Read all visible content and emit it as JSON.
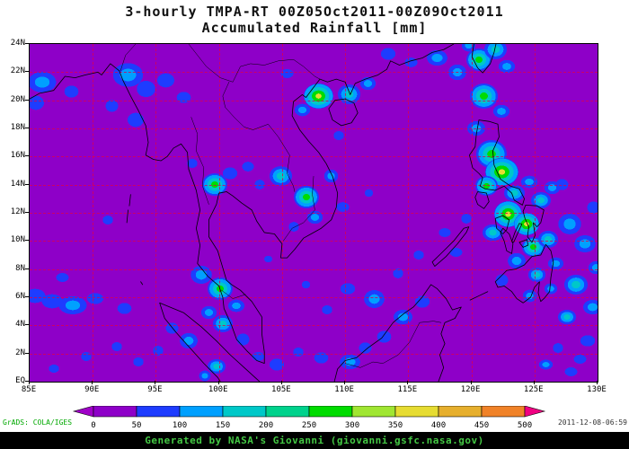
{
  "header": {
    "title_line1": "3-hourly TMPA-RT 00Z05Oct2011-00Z09Oct2011",
    "title_line2": "Accumulated Rainfall [mm]"
  },
  "footer": {
    "generated_by": "Generated by NASA's Giovanni (giovanni.gsfc.nasa.gov)",
    "grads_credit": "GrADS: COLA/IGES",
    "timestamp": "2011-12-08-06:59"
  },
  "colors": {
    "page_background": "#FFFFFF",
    "footer_bar": "#000000",
    "footer_text": "#44C844",
    "credit_text": "#00A800",
    "grid_line": "#DC0050",
    "coastline": "#000000"
  },
  "chart_data": {
    "type": "heatmap",
    "title": "3-hourly TMPA-RT 00Z05Oct2011-00Z09Oct2011 Accumulated Rainfall [mm]",
    "units": "mm",
    "region": {
      "lon_min_deg_e": 85,
      "lon_max_deg_e": 130,
      "lat_min": "EQ (0N)",
      "lat_max": "24N"
    },
    "x_ticks": [
      "85E",
      "90E",
      "95E",
      "100E",
      "105E",
      "110E",
      "115E",
      "120E",
      "125E",
      "130E"
    ],
    "y_ticks": [
      "EQ",
      "2N",
      "4N",
      "6N",
      "8N",
      "10N",
      "12N",
      "14N",
      "16N",
      "18N",
      "20N",
      "22N",
      "24N"
    ],
    "grid": {
      "on": true,
      "style": "dashed",
      "lat_step_deg": 2,
      "lon_step_deg": 5
    },
    "colorbar": {
      "labels": [
        "0",
        "50",
        "100",
        "150",
        "200",
        "250",
        "300",
        "350",
        "400",
        "450",
        "500"
      ],
      "colors": [
        "#A000C8",
        "#8E00C8",
        "#1E3CFF",
        "#00A0FF",
        "#00C8C8",
        "#00D28C",
        "#00DC00",
        "#A0E632",
        "#E6DC32",
        "#E6AF2D",
        "#F08228",
        "#F00082"
      ],
      "note": "first color = below-min arrow, last color = above-max arrow, 10 bands between labels"
    },
    "rain_cells": {
      "format": [
        "lon_deg_e",
        "lat_deg_n",
        "rx_deg",
        "ry_deg",
        "intensity_level"
      ],
      "levels_mm": {
        "1": "50-100",
        "2": "100-150",
        "3": "150-250",
        "4": "250-350",
        "5": "350-500"
      },
      "cells": [
        [
          86.0,
          21.3,
          1.2,
          0.8,
          2
        ],
        [
          85.5,
          19.8,
          0.8,
          0.6,
          1
        ],
        [
          88.3,
          20.6,
          0.7,
          0.5,
          1
        ],
        [
          91.5,
          19.6,
          0.6,
          0.5,
          1
        ],
        [
          92.8,
          21.8,
          1.3,
          0.9,
          2
        ],
        [
          94.2,
          20.8,
          0.9,
          0.7,
          1
        ],
        [
          95.8,
          21.4,
          0.8,
          0.6,
          1
        ],
        [
          97.2,
          20.2,
          0.7,
          0.5,
          1
        ],
        [
          93.4,
          18.6,
          0.8,
          0.6,
          1
        ],
        [
          85.4,
          6.1,
          1.0,
          0.6,
          1
        ],
        [
          86.8,
          5.7,
          1.0,
          0.6,
          1
        ],
        [
          88.4,
          5.4,
          1.2,
          0.7,
          2
        ],
        [
          90.2,
          5.9,
          0.8,
          0.5,
          1
        ],
        [
          92.5,
          5.2,
          0.7,
          0.5,
          1
        ],
        [
          87.6,
          7.4,
          0.6,
          0.4,
          1
        ],
        [
          91.2,
          11.5,
          0.5,
          0.4,
          1
        ],
        [
          99.7,
          14.0,
          1.0,
          0.8,
          4
        ],
        [
          100.9,
          14.8,
          0.7,
          0.5,
          1
        ],
        [
          102.3,
          15.3,
          0.6,
          0.4,
          1
        ],
        [
          103.2,
          14.0,
          0.5,
          0.4,
          1
        ],
        [
          104.9,
          14.6,
          0.9,
          0.7,
          3
        ],
        [
          106.9,
          13.1,
          1.0,
          0.8,
          4
        ],
        [
          107.6,
          11.7,
          0.7,
          0.5,
          2
        ],
        [
          105.9,
          11.0,
          0.5,
          0.4,
          1
        ],
        [
          108.9,
          14.6,
          0.6,
          0.5,
          2
        ],
        [
          109.8,
          12.4,
          0.6,
          0.4,
          1
        ],
        [
          97.9,
          15.5,
          0.5,
          0.4,
          1
        ],
        [
          107.9,
          20.3,
          1.2,
          0.9,
          5
        ],
        [
          106.6,
          19.3,
          0.7,
          0.5,
          2
        ],
        [
          110.3,
          20.4,
          0.9,
          0.7,
          3
        ],
        [
          111.8,
          21.2,
          0.7,
          0.5,
          2
        ],
        [
          109.5,
          17.5,
          0.5,
          0.4,
          1
        ],
        [
          105.4,
          21.9,
          0.6,
          0.4,
          1
        ],
        [
          113.4,
          23.3,
          0.7,
          0.5,
          1
        ],
        [
          115.2,
          22.7,
          0.6,
          0.4,
          1
        ],
        [
          117.3,
          23.0,
          0.9,
          0.6,
          2
        ],
        [
          118.9,
          22.0,
          0.8,
          0.6,
          2
        ],
        [
          120.6,
          22.9,
          1.0,
          0.8,
          4
        ],
        [
          121.9,
          23.6,
          0.9,
          0.7,
          3
        ],
        [
          119.8,
          23.9,
          0.6,
          0.5,
          2
        ],
        [
          122.8,
          22.4,
          0.7,
          0.5,
          2
        ],
        [
          121.0,
          20.3,
          1.1,
          0.9,
          4
        ],
        [
          122.4,
          19.2,
          0.7,
          0.5,
          2
        ],
        [
          120.4,
          18.0,
          0.8,
          0.6,
          2
        ],
        [
          121.6,
          16.2,
          1.2,
          1.0,
          4
        ],
        [
          122.4,
          14.9,
          1.3,
          1.0,
          5
        ],
        [
          121.2,
          13.9,
          0.9,
          0.7,
          4
        ],
        [
          123.4,
          13.4,
          0.8,
          0.6,
          3
        ],
        [
          124.6,
          14.2,
          0.7,
          0.5,
          2
        ],
        [
          122.9,
          11.9,
          1.1,
          0.9,
          5
        ],
        [
          121.7,
          10.6,
          0.8,
          0.6,
          3
        ],
        [
          124.4,
          11.2,
          1.0,
          0.8,
          5
        ],
        [
          125.5,
          12.9,
          0.8,
          0.6,
          3
        ],
        [
          126.4,
          13.8,
          0.7,
          0.5,
          2
        ],
        [
          124.9,
          9.6,
          0.9,
          0.7,
          4
        ],
        [
          126.1,
          10.1,
          0.8,
          0.6,
          3
        ],
        [
          123.6,
          8.6,
          0.8,
          0.6,
          2
        ],
        [
          125.2,
          7.6,
          0.7,
          0.5,
          3
        ],
        [
          126.7,
          8.4,
          0.7,
          0.5,
          2
        ],
        [
          122.4,
          7.2,
          0.6,
          0.5,
          1
        ],
        [
          124.6,
          6.1,
          0.6,
          0.5,
          2
        ],
        [
          126.3,
          6.6,
          0.6,
          0.4,
          2
        ],
        [
          127.8,
          11.2,
          1.0,
          0.8,
          2
        ],
        [
          129.0,
          9.8,
          0.9,
          0.7,
          2
        ],
        [
          129.7,
          12.4,
          0.6,
          0.5,
          1
        ],
        [
          127.2,
          14.0,
          0.6,
          0.5,
          1
        ],
        [
          128.3,
          6.9,
          0.9,
          0.7,
          3
        ],
        [
          129.6,
          5.3,
          0.8,
          0.6,
          2
        ],
        [
          127.6,
          4.6,
          0.7,
          0.5,
          3
        ],
        [
          129.2,
          2.9,
          0.7,
          0.5,
          1
        ],
        [
          128.6,
          1.6,
          0.6,
          0.4,
          1
        ],
        [
          129.9,
          8.1,
          0.7,
          0.5,
          2
        ],
        [
          126.9,
          2.4,
          0.5,
          0.4,
          1
        ],
        [
          125.9,
          1.2,
          0.6,
          0.4,
          2
        ],
        [
          127.9,
          0.7,
          0.6,
          0.4,
          1
        ],
        [
          98.6,
          7.6,
          0.9,
          0.7,
          2
        ],
        [
          100.1,
          6.6,
          1.0,
          0.8,
          4
        ],
        [
          101.4,
          5.4,
          0.7,
          0.5,
          2
        ],
        [
          99.2,
          4.9,
          0.7,
          0.5,
          2
        ],
        [
          100.3,
          4.1,
          0.8,
          0.6,
          3
        ],
        [
          101.9,
          3.0,
          0.6,
          0.5,
          1
        ],
        [
          103.1,
          1.8,
          0.6,
          0.4,
          1
        ],
        [
          97.6,
          2.9,
          0.8,
          0.6,
          2
        ],
        [
          96.3,
          3.8,
          0.6,
          0.5,
          1
        ],
        [
          95.2,
          2.2,
          0.5,
          0.4,
          1
        ],
        [
          99.8,
          1.1,
          0.7,
          0.5,
          3
        ],
        [
          98.9,
          0.4,
          0.5,
          0.4,
          2
        ],
        [
          104.6,
          1.2,
          0.7,
          0.5,
          1
        ],
        [
          106.3,
          2.1,
          0.5,
          0.4,
          1
        ],
        [
          108.1,
          1.7,
          0.7,
          0.5,
          1
        ],
        [
          110.4,
          1.4,
          0.9,
          0.6,
          2
        ],
        [
          111.6,
          2.4,
          0.6,
          0.5,
          1
        ],
        [
          113.1,
          3.2,
          0.7,
          0.5,
          1
        ],
        [
          114.6,
          4.6,
          0.8,
          0.6,
          2
        ],
        [
          116.1,
          5.7,
          0.7,
          0.5,
          1
        ],
        [
          112.3,
          5.9,
          0.9,
          0.7,
          2
        ],
        [
          110.2,
          6.6,
          0.7,
          0.5,
          1
        ],
        [
          108.6,
          5.1,
          0.5,
          0.4,
          1
        ],
        [
          114.2,
          7.7,
          0.5,
          0.4,
          1
        ],
        [
          117.9,
          10.6,
          0.6,
          0.4,
          1
        ],
        [
          119.6,
          11.6,
          0.5,
          0.4,
          1
        ],
        [
          118.8,
          9.2,
          0.6,
          0.4,
          1
        ],
        [
          115.8,
          9.0,
          0.5,
          0.4,
          1
        ],
        [
          103.9,
          8.7,
          0.4,
          0.3,
          1
        ],
        [
          106.9,
          6.9,
          0.4,
          0.3,
          1
        ],
        [
          111.9,
          13.4,
          0.4,
          0.3,
          1
        ],
        [
          91.9,
          2.5,
          0.5,
          0.4,
          1
        ],
        [
          93.6,
          1.4,
          0.5,
          0.4,
          1
        ],
        [
          89.5,
          1.8,
          0.5,
          0.4,
          1
        ],
        [
          86.9,
          0.9,
          0.5,
          0.35,
          1
        ]
      ]
    }
  }
}
